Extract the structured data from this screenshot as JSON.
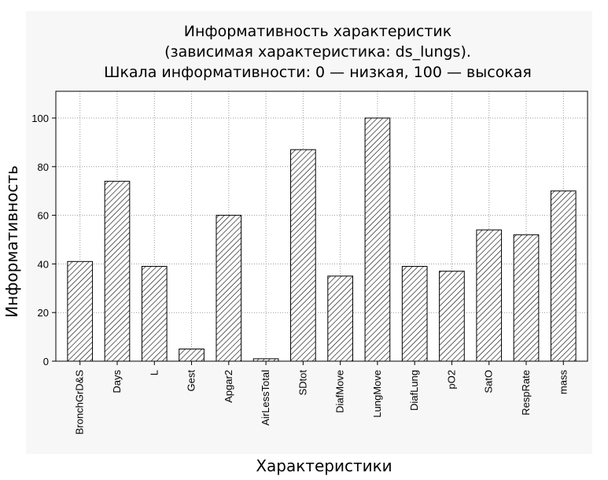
{
  "chart_data": {
    "type": "bar",
    "title_lines": [
      "Информативность характеристик",
      "(зависимая характеристика: ds_lungs).",
      "Шкала информативности: 0 — низкая, 100 — высокая"
    ],
    "xlabel": "Характеристики",
    "ylabel": "Информативность",
    "categories": [
      "BronchGrD&S",
      "Days",
      "L",
      "Gest",
      "Apgar2",
      "AirLessTotal",
      "SDtot",
      "DiafMove",
      "LungMove",
      "DiafLung",
      "pO2",
      "SatO",
      "RespRate",
      "mass"
    ],
    "values": [
      41,
      74,
      39,
      5,
      60,
      1,
      87,
      35,
      100,
      39,
      37,
      54,
      52,
      70
    ],
    "ylim": [
      0,
      111
    ],
    "yticks": [
      0,
      20,
      40,
      60,
      80,
      100
    ],
    "grid": true,
    "bar_fill": "diagonal-hatch",
    "colors": {
      "background": "#ffffff",
      "bar_stroke": "#000000",
      "grid": "#999999"
    }
  }
}
